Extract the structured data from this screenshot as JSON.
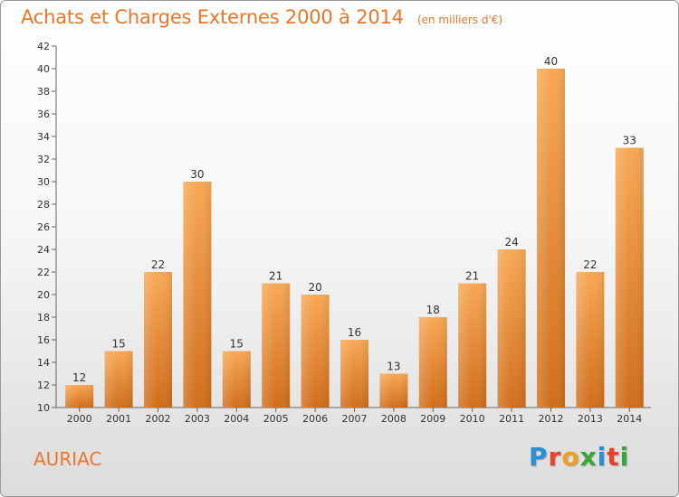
{
  "header": {
    "title": "Achats et Charges Externes 2000 à 2014",
    "subtitle": "(en milliers d'€)"
  },
  "footer": {
    "commune": "AURIAC",
    "logo": "Proxiti"
  },
  "colors": {
    "bar_top": "#f8a855",
    "bar_bottom": "#d06e1c",
    "title": "#e8772a"
  },
  "chart_data": {
    "type": "bar",
    "categories": [
      "2000",
      "2001",
      "2002",
      "2003",
      "2004",
      "2005",
      "2006",
      "2007",
      "2008",
      "2009",
      "2010",
      "2011",
      "2012",
      "2013",
      "2014"
    ],
    "values": [
      12,
      15,
      22,
      30,
      15,
      21,
      20,
      16,
      13,
      18,
      21,
      24,
      40,
      22,
      33
    ],
    "title": "Achats et Charges Externes 2000 à 2014",
    "subtitle": "(en milliers d'€)",
    "xlabel": "",
    "ylabel": "",
    "ylim": [
      10,
      42
    ],
    "yticks": [
      10,
      12,
      14,
      16,
      18,
      20,
      22,
      24,
      26,
      28,
      30,
      32,
      34,
      36,
      38,
      40,
      42
    ],
    "grid": false,
    "legend": "none",
    "data_labels": true
  }
}
